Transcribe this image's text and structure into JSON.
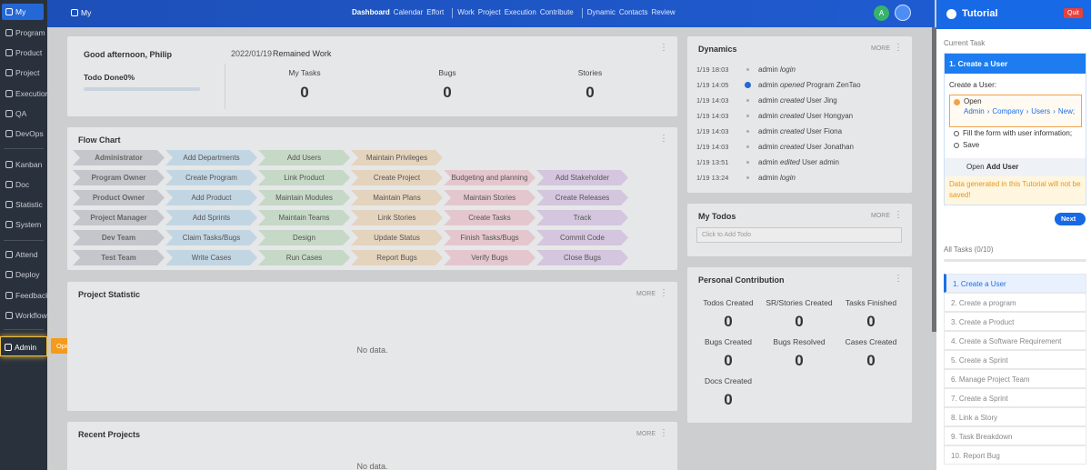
{
  "sidebar": {
    "groups": [
      [
        "My",
        "Program",
        "Product",
        "Project",
        "Execution",
        "QA",
        "DevOps"
      ],
      [
        "Kanban",
        "Doc",
        "Statistic",
        "System"
      ],
      [
        "Attend",
        "Deploy",
        "Feedback",
        "Workflow"
      ],
      [
        "Admin"
      ]
    ],
    "tooltip": "Open Admin"
  },
  "topbar": {
    "breadcrumb": "My",
    "nav": [
      [
        "Dashboard",
        "Calendar",
        "Effort"
      ],
      [
        "Work",
        "Project",
        "Execution",
        "Contribute"
      ],
      [
        "Dynamic",
        "Contacts",
        "Review"
      ]
    ],
    "avatar": "A"
  },
  "welcome": {
    "greeting": "Good afternoon, Philip",
    "todo_done": "Todo Done0%",
    "date": "2022/01/19",
    "remained": "Remained Work",
    "stats": [
      {
        "label": "My Tasks",
        "value": "0"
      },
      {
        "label": "Bugs",
        "value": "0"
      },
      {
        "label": "Stories",
        "value": "0"
      }
    ]
  },
  "flow_chart": {
    "title": "Flow Chart",
    "rows": [
      [
        "Administrator",
        "Add Departments",
        "Add Users",
        "Maintain Privileges"
      ],
      [
        "Program Owner",
        "Create Program",
        "Link Product",
        "Create Project",
        "Budgeting and planning",
        "Add Stakeholder"
      ],
      [
        "Product Owner",
        "Add Product",
        "Maintain Modules",
        "Maintain Plans",
        "Maintain Stories",
        "Create Releases"
      ],
      [
        "Project Manager",
        "Add Sprints",
        "Maintain Teams",
        "Link Stories",
        "Create Tasks",
        "Track"
      ],
      [
        "Dev Team",
        "Claim Tasks/Bugs",
        "Design",
        "Update Status",
        "Finish Tasks/Bugs",
        "Commit Code"
      ],
      [
        "Test Team",
        "Write Cases",
        "Run Cases",
        "Report Bugs",
        "Verify Bugs",
        "Close Bugs"
      ]
    ]
  },
  "project_statistic": {
    "title": "Project Statistic",
    "more": "MORE",
    "empty": "No data."
  },
  "recent_projects": {
    "title": "Recent Projects",
    "more": "MORE",
    "empty": "No data."
  },
  "dynamics": {
    "title": "Dynamics",
    "more": "MORE",
    "entries": [
      {
        "time": "1/19 18:03",
        "user": "admin",
        "action": "login"
      },
      {
        "time": "1/19 14:05",
        "user": "admin",
        "action": "opened",
        "object": "Program ZenTao"
      },
      {
        "time": "1/19 14:03",
        "user": "admin",
        "action": "created",
        "object": "User Jing"
      },
      {
        "time": "1/19 14:03",
        "user": "admin",
        "action": "created",
        "object": "User Hongyan"
      },
      {
        "time": "1/19 14:03",
        "user": "admin",
        "action": "created",
        "object": "User Fiona"
      },
      {
        "time": "1/19 14:03",
        "user": "admin",
        "action": "created",
        "object": "User Jonathan"
      },
      {
        "time": "1/19 13:51",
        "user": "admin",
        "action": "edited",
        "object": "User admin"
      },
      {
        "time": "1/19 13:24",
        "user": "admin",
        "action": "login"
      }
    ]
  },
  "todos": {
    "title": "My Todos",
    "more": "MORE",
    "placeholder": "Click to Add Todo"
  },
  "contribution": {
    "title": "Personal Contribution",
    "items": [
      {
        "label": "Todos Created",
        "value": "0"
      },
      {
        "label": "SR/Stories Created",
        "value": "0"
      },
      {
        "label": "Tasks Finished",
        "value": "0"
      },
      {
        "label": "Bugs Created",
        "value": "0"
      },
      {
        "label": "Bugs Resolved",
        "value": "0"
      },
      {
        "label": "Cases Created",
        "value": "0"
      },
      {
        "label": "Docs Created",
        "value": "0"
      }
    ]
  },
  "tutorial": {
    "title": "Tutorial",
    "quit": "Quit",
    "current_label": "Current Task",
    "task_title": "1. Create a User",
    "intro": "Create a User:",
    "steps": [
      {
        "text": "Open",
        "path": [
          "Admin",
          "Company",
          "Users",
          "New;"
        ]
      },
      {
        "text": "Fill the form with user information;"
      },
      {
        "text": "Save"
      }
    ],
    "open_prefix": "Open",
    "open_target": "Add User",
    "warning": "Data generated in this Tutorial will not be saved!",
    "next": "Next",
    "all_tasks": "All Tasks (0/10)",
    "tasks": [
      "1. Create a User",
      "2. Create a program",
      "3. Create a Product",
      "4. Create a Software Requirement",
      "5. Create a Sprint",
      "6. Manage Project Team",
      "7. Create a Sprint",
      "8. Link a Story",
      "9. Task Breakdown",
      "10. Report Bug"
    ]
  }
}
